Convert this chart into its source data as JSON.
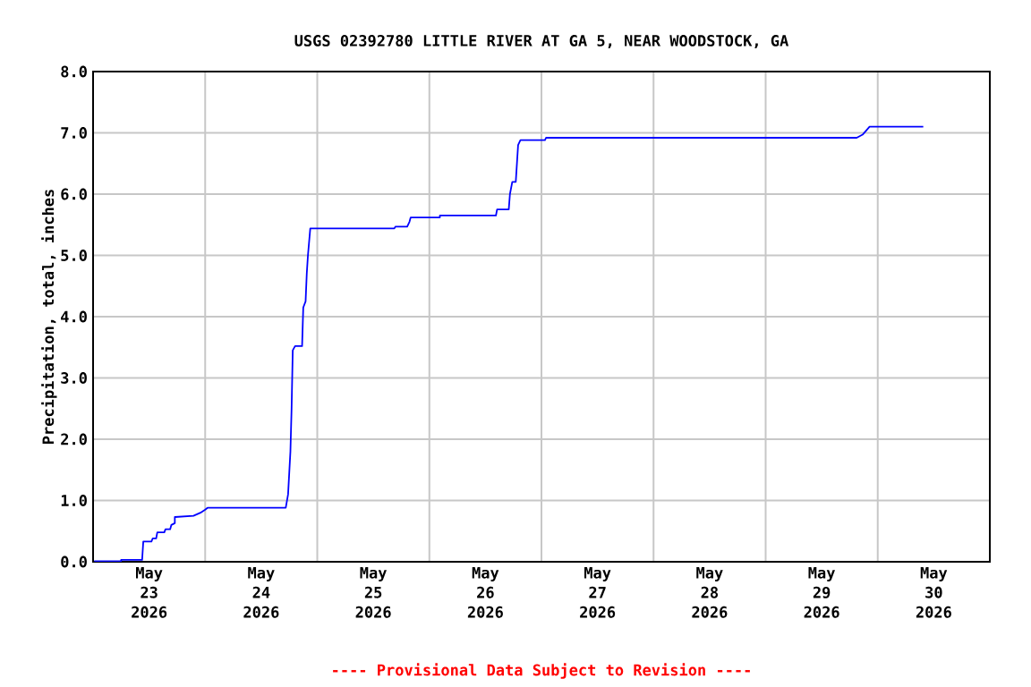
{
  "chart_data": {
    "type": "line",
    "title": "USGS 02392780 LITTLE RIVER AT GA 5, NEAR WOODSTOCK, GA",
    "ylabel": "Precipitation, total, inches",
    "annotations": [
      "---- Provisional Data Subject to Revision ----"
    ],
    "x": [
      "2026-05-23T00:15",
      "2026-05-23T06:00",
      "2026-05-23T06:00",
      "2026-05-23T10:30",
      "2026-05-23T10:45",
      "2026-05-23T12:30",
      "2026-05-23T12:45",
      "2026-05-23T13:30",
      "2026-05-23T13:45",
      "2026-05-23T15:15",
      "2026-05-23T15:30",
      "2026-05-23T16:30",
      "2026-05-23T16:45",
      "2026-05-23T17:30",
      "2026-05-23T17:30",
      "2026-05-23T21:30",
      "2026-05-23T23:00",
      "2026-05-24T00:00",
      "2026-05-24T00:30",
      "2026-05-24T17:15",
      "2026-05-24T17:45",
      "2026-05-24T18:15",
      "2026-05-24T18:30",
      "2026-05-24T18:45",
      "2026-05-24T19:15",
      "2026-05-24T20:45",
      "2026-05-24T21:00",
      "2026-05-24T21:30",
      "2026-05-24T21:45",
      "2026-05-24T22:00",
      "2026-05-24T22:30",
      "2026-05-25T16:30",
      "2026-05-25T16:45",
      "2026-05-25T19:15",
      "2026-05-25T19:45",
      "2026-05-25T20:00",
      "2026-05-26T02:15",
      "2026-05-26T02:15",
      "2026-05-26T14:15",
      "2026-05-26T14:30",
      "2026-05-26T17:00",
      "2026-05-26T17:15",
      "2026-05-26T17:45",
      "2026-05-26T18:30",
      "2026-05-26T18:45",
      "2026-05-26T19:00",
      "2026-05-26T19:30",
      "2026-05-27T00:45",
      "2026-05-27T01:00",
      "2026-05-29T19:30",
      "2026-05-29T20:45",
      "2026-05-29T22:15",
      "2026-05-30T09:45"
    ],
    "values": [
      0.01,
      0.01,
      0.03,
      0.03,
      0.33,
      0.33,
      0.38,
      0.38,
      0.48,
      0.48,
      0.53,
      0.53,
      0.6,
      0.63,
      0.73,
      0.75,
      0.8,
      0.85,
      0.88,
      0.88,
      1.1,
      1.8,
      2.5,
      3.45,
      3.52,
      3.52,
      4.15,
      4.25,
      4.7,
      5.0,
      5.44,
      5.44,
      5.47,
      5.47,
      5.55,
      5.62,
      5.62,
      5.65,
      5.65,
      5.75,
      5.75,
      6.0,
      6.2,
      6.2,
      6.5,
      6.8,
      6.88,
      6.88,
      6.92,
      6.92,
      6.97,
      7.1,
      7.1
    ],
    "color": "#0000ff",
    "xlim": [
      "2026-05-23T00:00",
      "2026-05-31T00:00"
    ],
    "xticks": [
      {
        "value": "2026-05-23T12:00",
        "label": "May 23 2026"
      },
      {
        "value": "2026-05-24T00:00",
        "label": null
      },
      {
        "value": "2026-05-24T12:00",
        "label": "May 24 2026"
      },
      {
        "value": "2026-05-25T00:00",
        "label": null
      },
      {
        "value": "2026-05-25T12:00",
        "label": "May 25 2026"
      },
      {
        "value": "2026-05-26T00:00",
        "label": null
      },
      {
        "value": "2026-05-26T12:00",
        "label": "May 26 2026"
      },
      {
        "value": "2026-05-27T00:00",
        "label": null
      },
      {
        "value": "2026-05-27T12:00",
        "label": "May 27 2026"
      },
      {
        "value": "2026-05-28T00:00",
        "label": null
      },
      {
        "value": "2026-05-28T12:00",
        "label": "May 28 2026"
      },
      {
        "value": "2026-05-29T00:00",
        "label": null
      },
      {
        "value": "2026-05-29T12:00",
        "label": "May 29 2026"
      },
      {
        "value": "2026-05-30T00:00",
        "label": null
      },
      {
        "value": "2026-05-30T12:00",
        "label": "May 30 2026"
      }
    ],
    "ylim": [
      0,
      8
    ],
    "yticks": [
      {
        "value": 0,
        "label": "0.0"
      },
      {
        "value": 1,
        "label": "1.0"
      },
      {
        "value": 2,
        "label": "2.0"
      },
      {
        "value": 3,
        "label": "3.0"
      },
      {
        "value": 4,
        "label": "4.0"
      },
      {
        "value": 5,
        "label": "5.0"
      },
      {
        "value": 6,
        "label": "6.0"
      },
      {
        "value": 7,
        "label": "7.0"
      },
      {
        "value": 8,
        "label": "8.0"
      }
    ],
    "grid": true
  }
}
